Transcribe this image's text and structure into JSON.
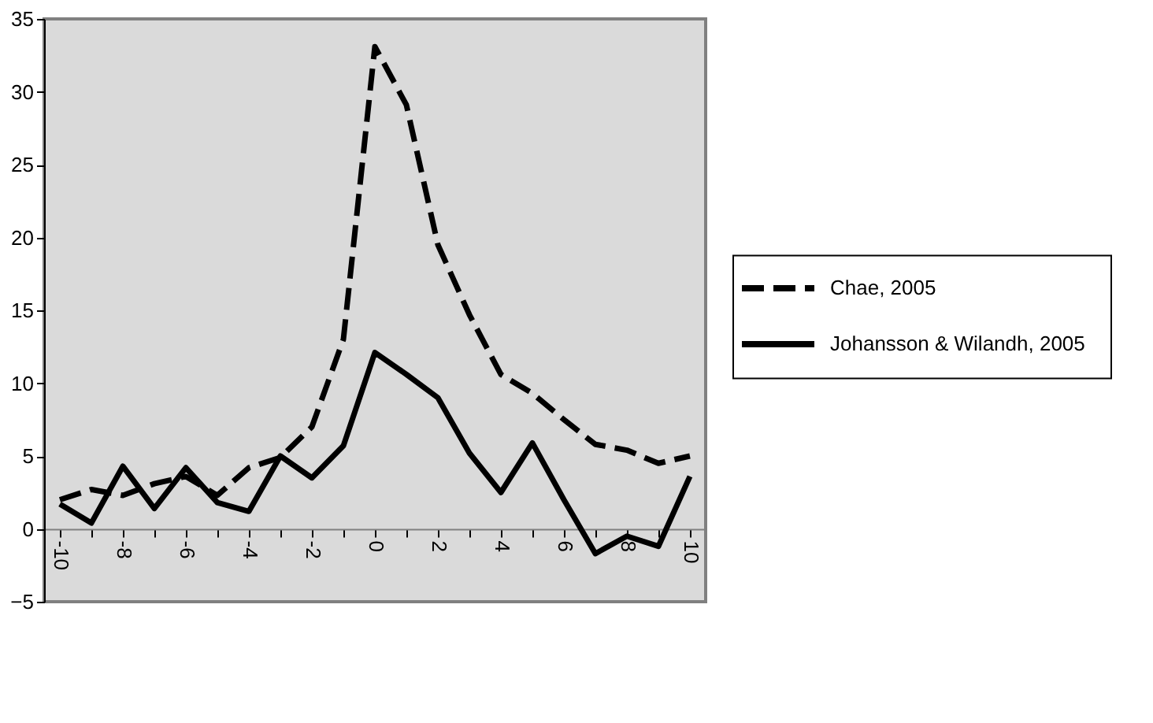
{
  "chart_data": {
    "type": "line",
    "categories": [
      "-10",
      null,
      "-8",
      null,
      "-6",
      null,
      "-4",
      null,
      "-2",
      null,
      "0",
      null,
      "2",
      null,
      "4",
      null,
      "6",
      null,
      "8",
      null,
      "10"
    ],
    "series": [
      {
        "name": "Chae, 2005",
        "color": "#000000",
        "line_style": "dashed",
        "values": [
          2.0,
          2.7,
          2.3,
          3.1,
          3.6,
          2.3,
          4.2,
          4.9,
          7.0,
          13.0,
          33.1,
          29.1,
          19.5,
          14.7,
          10.6,
          9.3,
          7.5,
          5.8,
          5.4,
          4.5,
          5.0
        ]
      },
      {
        "name": "Johansson & Wilandh, 2005",
        "color": "#000000",
        "line_style": "solid",
        "values": [
          1.7,
          0.4,
          4.3,
          1.4,
          4.2,
          1.8,
          1.2,
          5.0,
          3.5,
          5.7,
          12.1,
          10.6,
          9.0,
          5.2,
          2.5,
          5.9,
          2.0,
          -1.7,
          -0.5,
          -1.2,
          3.6
        ]
      }
    ],
    "ylim": [
      -5,
      35
    ],
    "yticks": [
      -5,
      0,
      5,
      10,
      15,
      20,
      25,
      30,
      35
    ],
    "grid": false,
    "legend": "right",
    "marker": "none"
  }
}
